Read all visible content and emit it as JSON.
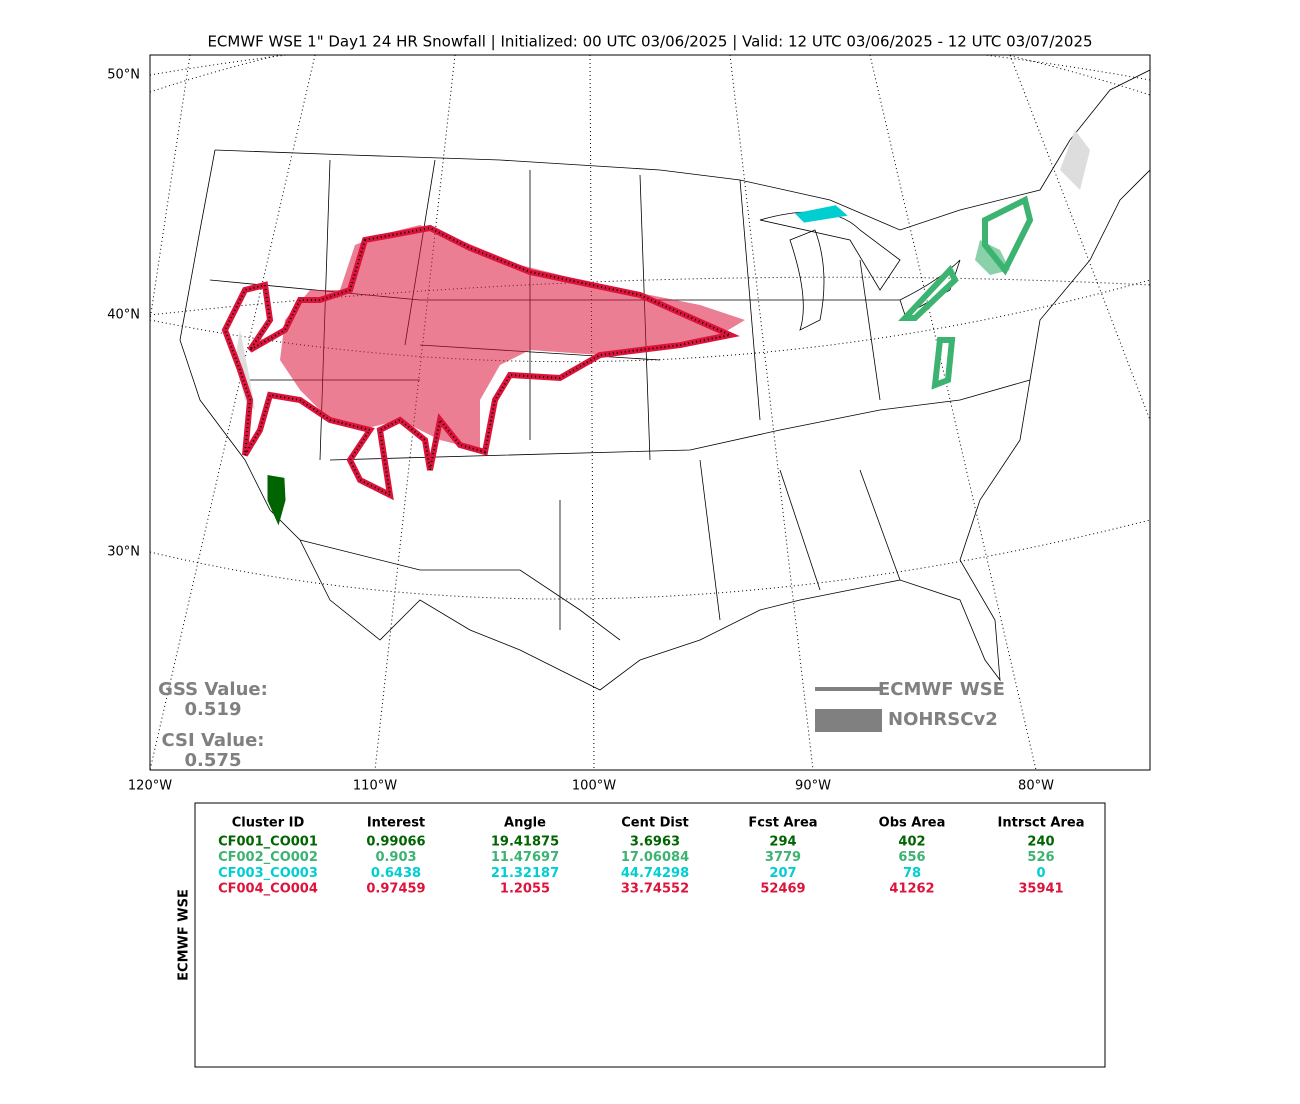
{
  "title": "ECMWF WSE 1\" Day1 24 HR Snowfall | Initialized: 00 UTC 03/06/2025 | Valid: 12 UTC 03/06/2025 - 12 UTC 03/07/2025",
  "map": {
    "lat_labels": [
      "50°N",
      "40°N",
      "30°N"
    ],
    "lon_labels": [
      "120°W",
      "110°W",
      "100°W",
      "90°W",
      "80°W"
    ],
    "stats": [
      {
        "label": "GSS Value:",
        "value": "0.519"
      },
      {
        "label": "CSI Value:",
        "value": "0.575"
      }
    ],
    "legend": [
      "ECMWF WSE",
      "NOHRSCv2"
    ]
  },
  "table": {
    "side_label": "ECMWF WSE",
    "columns": [
      "Cluster ID",
      "Interest",
      "Angle",
      "Cent Dist",
      "Fcst Area",
      "Obs Area",
      "Intrsct Area"
    ],
    "rows": [
      {
        "color": "#006400",
        "cells": [
          "CF001_CO001",
          "0.99066",
          "19.41875",
          "3.6963",
          "294",
          "402",
          "240"
        ]
      },
      {
        "color": "#3cb371",
        "cells": [
          "CF002_CO002",
          "0.903",
          "11.47697",
          "17.06084",
          "3779",
          "656",
          "526"
        ]
      },
      {
        "color": "#00ced1",
        "cells": [
          "CF003_CO003",
          "0.6438",
          "21.32187",
          "44.74298",
          "207",
          "78",
          "0"
        ]
      },
      {
        "color": "#dc143c",
        "cells": [
          "CF004_CO004",
          "0.97459",
          "1.2055",
          "33.74552",
          "52469",
          "41262",
          "35941"
        ]
      }
    ]
  }
}
